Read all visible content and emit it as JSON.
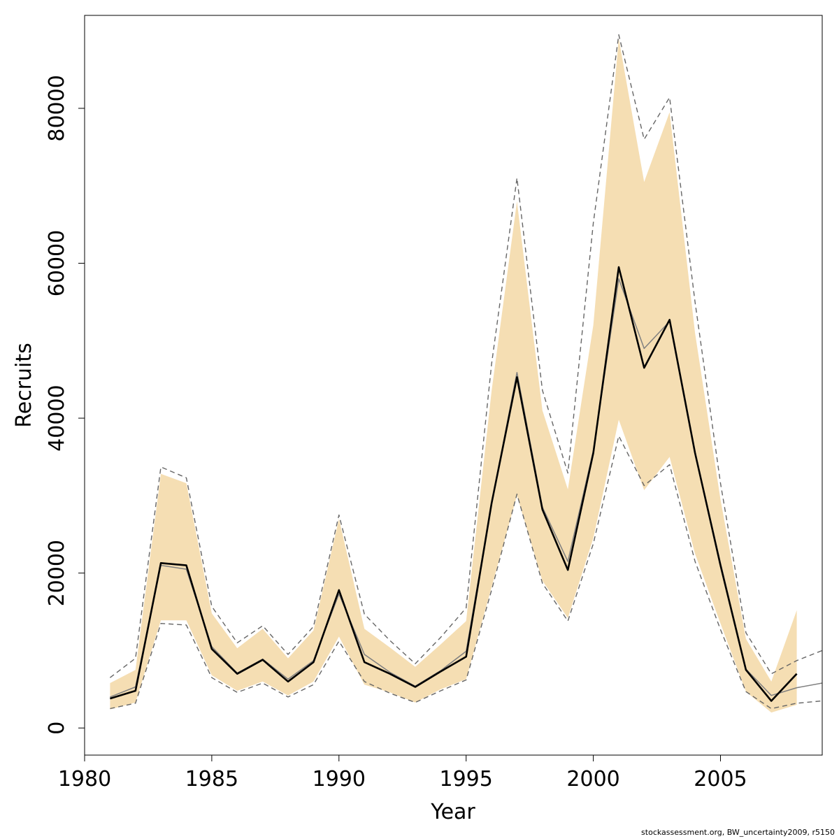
{
  "chart_data": {
    "type": "area",
    "title": "",
    "xlabel": "Year",
    "ylabel": "Recruits",
    "xlim": [
      1980,
      2009
    ],
    "ylim": [
      -3500,
      92000
    ],
    "x_ticks": [
      1980,
      1985,
      1990,
      1995,
      2000,
      2005
    ],
    "x_tick_labels": [
      "1980",
      "1985",
      "1990",
      "1995",
      "2000",
      "2005"
    ],
    "y_ticks": [
      0,
      20000,
      40000,
      60000,
      80000
    ],
    "y_tick_labels": [
      "0",
      "20000",
      "40000",
      "60000",
      "80000"
    ],
    "grid": false,
    "legend": "none",
    "colors": {
      "band": "#f5deb3",
      "main_line": "#000000",
      "thin_line": "#808080",
      "dashed_line": "#666666"
    },
    "band": {
      "x": [
        1981,
        1982,
        1983,
        1984,
        1985,
        1986,
        1987,
        1988,
        1989,
        1990,
        1991,
        1992,
        1993,
        1994,
        1995,
        1996,
        1997,
        1998,
        1999,
        2000,
        2001,
        2002,
        2003,
        2004,
        2005,
        2006,
        2007,
        2008
      ],
      "upper": [
        5800,
        7500,
        32800,
        31600,
        14800,
        10300,
        12800,
        9000,
        12600,
        27000,
        12800,
        10400,
        7900,
        10800,
        13800,
        43500,
        68000,
        41000,
        30800,
        52000,
        89000,
        70500,
        79500,
        51000,
        29500,
        11500,
        6000,
        15200
      ],
      "lower": [
        2400,
        3300,
        13900,
        13900,
        6800,
        4800,
        6000,
        4200,
        6000,
        11800,
        5600,
        4600,
        3300,
        5000,
        6300,
        18200,
        30000,
        19000,
        14200,
        24500,
        39800,
        30700,
        35000,
        22500,
        13500,
        4700,
        2000,
        3000
      ]
    },
    "series": [
      {
        "x": [
          1981,
          1982,
          1983,
          1984,
          1985,
          1986,
          1987,
          1988,
          1989,
          1990,
          1991,
          1992,
          1993,
          1994,
          1995,
          1996,
          1997,
          1998,
          1999,
          2000,
          2001,
          2002,
          2003,
          2004,
          2005,
          2006,
          2007,
          2008
        ],
        "values": [
          3800,
          4800,
          21300,
          21000,
          10200,
          7000,
          8800,
          6000,
          8500,
          17800,
          8500,
          7000,
          5300,
          7300,
          9200,
          29000,
          45300,
          28200,
          20400,
          35500,
          59500,
          46500,
          52700,
          35500,
          21000,
          7500,
          3500,
          7000
        ],
        "style": "thick"
      },
      {
        "x": [
          1981,
          1982,
          1983,
          1984,
          1985,
          1986,
          1987,
          1988,
          1989,
          1990,
          1991,
          1992,
          1993,
          1994,
          1995,
          1996,
          1997,
          1998,
          1999,
          2000,
          2001,
          2002,
          2003,
          2004,
          2005,
          2006,
          2007,
          2008,
          2009,
          2009.2
        ],
        "values": [
          4000,
          5300,
          21000,
          20500,
          10500,
          7100,
          8900,
          6300,
          8700,
          17300,
          9500,
          7200,
          5400,
          7400,
          9900,
          29000,
          45900,
          28500,
          21500,
          35800,
          58000,
          49000,
          52500,
          35500,
          21300,
          7600,
          4200,
          5200,
          5800,
          7200
        ],
        "style": "thin"
      },
      {
        "x": [
          1981,
          1982,
          1983,
          1984,
          1985,
          1986,
          1987,
          1988,
          1989,
          1990,
          1991,
          1992,
          1993,
          1994,
          1995,
          1996,
          1997,
          1998,
          1999,
          2000,
          2001,
          2002,
          2003,
          2004,
          2005,
          2006,
          2007,
          2008,
          2009,
          2009.2
        ],
        "values": [
          6500,
          9000,
          33700,
          32300,
          15700,
          11000,
          13200,
          9500,
          13100,
          27500,
          14700,
          11300,
          8300,
          11700,
          15500,
          47000,
          71000,
          43600,
          32900,
          65200,
          89500,
          76000,
          81400,
          55000,
          31600,
          12300,
          7000,
          8700,
          10000,
          12000
        ],
        "style": "dashed"
      },
      {
        "x": [
          1981,
          1982,
          1983,
          1984,
          1985,
          1986,
          1987,
          1988,
          1989,
          1990,
          1991,
          1992,
          1993,
          1994,
          1995,
          1996,
          1997,
          1998,
          1999,
          2000,
          2001,
          2002,
          2003,
          2004,
          2005,
          2006,
          2007,
          2008,
          2009,
          2009.2
        ],
        "values": [
          2500,
          3200,
          13500,
          13300,
          6500,
          4600,
          5800,
          4000,
          5600,
          11200,
          6000,
          4500,
          3300,
          4800,
          6200,
          17800,
          30200,
          18700,
          13800,
          23800,
          37700,
          31300,
          34000,
          21500,
          12700,
          4700,
          2500,
          3200,
          3500,
          4500
        ],
        "style": "dashed"
      }
    ]
  },
  "footer": {
    "text": "stockassessment.org, BW_uncertainty2009, r5150"
  }
}
